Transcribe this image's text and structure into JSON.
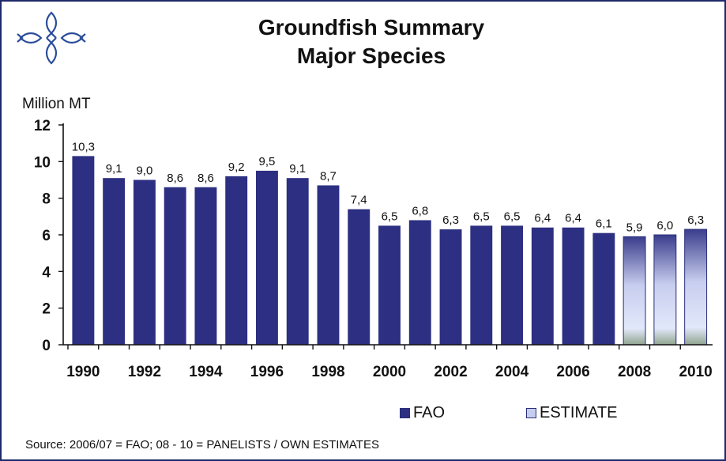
{
  "colors": {
    "fao": "#2d2f82",
    "estimate_top": "#3a3d8c",
    "estimate_mid": "#d6dcf4",
    "estimate_bottom": "#8fa48f",
    "frame": "#1f2a6b",
    "logo": "#2a4c9a"
  },
  "logo": {
    "icon": "fish-cross-logo"
  },
  "header": {
    "title_line1": "Groundfish Summary",
    "title_line2": "Major Species"
  },
  "chart_data": {
    "type": "bar",
    "title": "Groundfish Summary Major Species",
    "ylabel": "Million MT",
    "ylim": [
      0,
      12
    ],
    "yticks": [
      0,
      2,
      4,
      6,
      8,
      10,
      12
    ],
    "grid": false,
    "legend_position": "bottom-right",
    "categories": [
      "1990",
      "1991",
      "1992",
      "1993",
      "1994",
      "1995",
      "1996",
      "1997",
      "1998",
      "1999",
      "2000",
      "2001",
      "2002",
      "2003",
      "2004",
      "2005",
      "2006",
      "2007",
      "2008",
      "2009",
      "2010"
    ],
    "x_tick_labels": [
      "1990",
      "",
      "1992",
      "",
      "1994",
      "",
      "1996",
      "",
      "1998",
      "",
      "2000",
      "",
      "2002",
      "",
      "2004",
      "",
      "2006",
      "",
      "2008",
      "",
      "2010"
    ],
    "values": [
      10.3,
      9.1,
      9.0,
      8.6,
      8.6,
      9.2,
      9.5,
      9.1,
      8.7,
      7.4,
      6.5,
      6.8,
      6.3,
      6.5,
      6.5,
      6.4,
      6.4,
      6.1,
      5.9,
      6.0,
      6.3
    ],
    "value_labels": [
      "10,3",
      "9,1",
      "9,0",
      "8,6",
      "8,6",
      "9,2",
      "9,5",
      "9,1",
      "8,7",
      "7,4",
      "6,5",
      "6,8",
      "6,3",
      "6,5",
      "6,5",
      "6,4",
      "6,4",
      "6,1",
      "5,9",
      "6,0",
      "6,3"
    ],
    "series": [
      {
        "name": "FAO",
        "from_index": 0,
        "to_index": 17
      },
      {
        "name": "ESTIMATE",
        "from_index": 18,
        "to_index": 20
      }
    ]
  },
  "legend": {
    "fao_label": "FAO",
    "estimate_label": "ESTIMATE"
  },
  "footer": {
    "source": "Source: 2006/07 = FAO; 08 - 10 = PANELISTS / OWN ESTIMATES"
  }
}
